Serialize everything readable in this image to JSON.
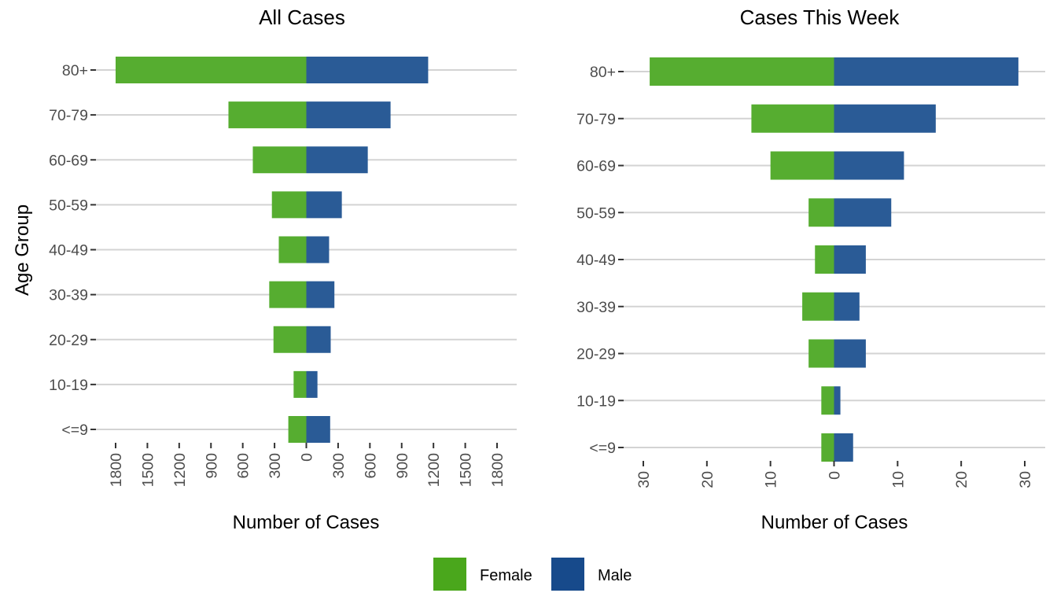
{
  "chart_data": [
    {
      "type": "bar",
      "orientation": "horizontal",
      "subtype": "population-pyramid",
      "title": "All Cases",
      "xlabel": "Number of Cases",
      "ylabel": "Age Group",
      "categories": [
        "<=9",
        "10-19",
        "20-29",
        "30-39",
        "40-49",
        "50-59",
        "60-69",
        "70-79",
        "80+"
      ],
      "series": [
        {
          "name": "Female",
          "side": "left",
          "values": [
            170,
            120,
            310,
            350,
            260,
            325,
            505,
            735,
            1800
          ]
        },
        {
          "name": "Male",
          "side": "right",
          "values": [
            225,
            105,
            230,
            265,
            215,
            335,
            580,
            795,
            1150
          ]
        }
      ],
      "xlim": [
        -1800,
        1800
      ],
      "xticks": [
        -1800,
        -1500,
        -1200,
        -900,
        -600,
        -300,
        0,
        300,
        600,
        900,
        1200,
        1500,
        1800
      ],
      "xtick_labels": [
        "1800",
        "1500",
        "1200",
        "900",
        "600",
        "300",
        "0",
        "300",
        "600",
        "900",
        "1200",
        "1500",
        "1800"
      ],
      "grid": "horizontal"
    },
    {
      "type": "bar",
      "orientation": "horizontal",
      "subtype": "population-pyramid",
      "title": "Cases This Week",
      "xlabel": "Number of Cases",
      "ylabel": "",
      "categories": [
        "<=9",
        "10-19",
        "20-29",
        "30-39",
        "40-49",
        "50-59",
        "60-69",
        "70-79",
        "80+"
      ],
      "series": [
        {
          "name": "Female",
          "side": "left",
          "values": [
            2,
            2,
            4,
            5,
            3,
            4,
            10,
            13,
            29
          ]
        },
        {
          "name": "Male",
          "side": "right",
          "values": [
            3,
            1,
            5,
            4,
            5,
            9,
            11,
            16,
            29
          ]
        }
      ],
      "xlim": [
        -30,
        30
      ],
      "xticks": [
        -30,
        -20,
        -10,
        0,
        10,
        20,
        30
      ],
      "xtick_labels": [
        "30",
        "20",
        "10",
        "0",
        "10",
        "20",
        "30"
      ],
      "grid": "horizontal"
    }
  ],
  "legend": {
    "position": "bottom",
    "items": [
      {
        "label": "Female",
        "color": "#4aa71c"
      },
      {
        "label": "Male",
        "color": "#174a8b"
      }
    ]
  },
  "colors": {
    "female_bar": "#56ad30",
    "male_bar": "#2a5b96"
  }
}
